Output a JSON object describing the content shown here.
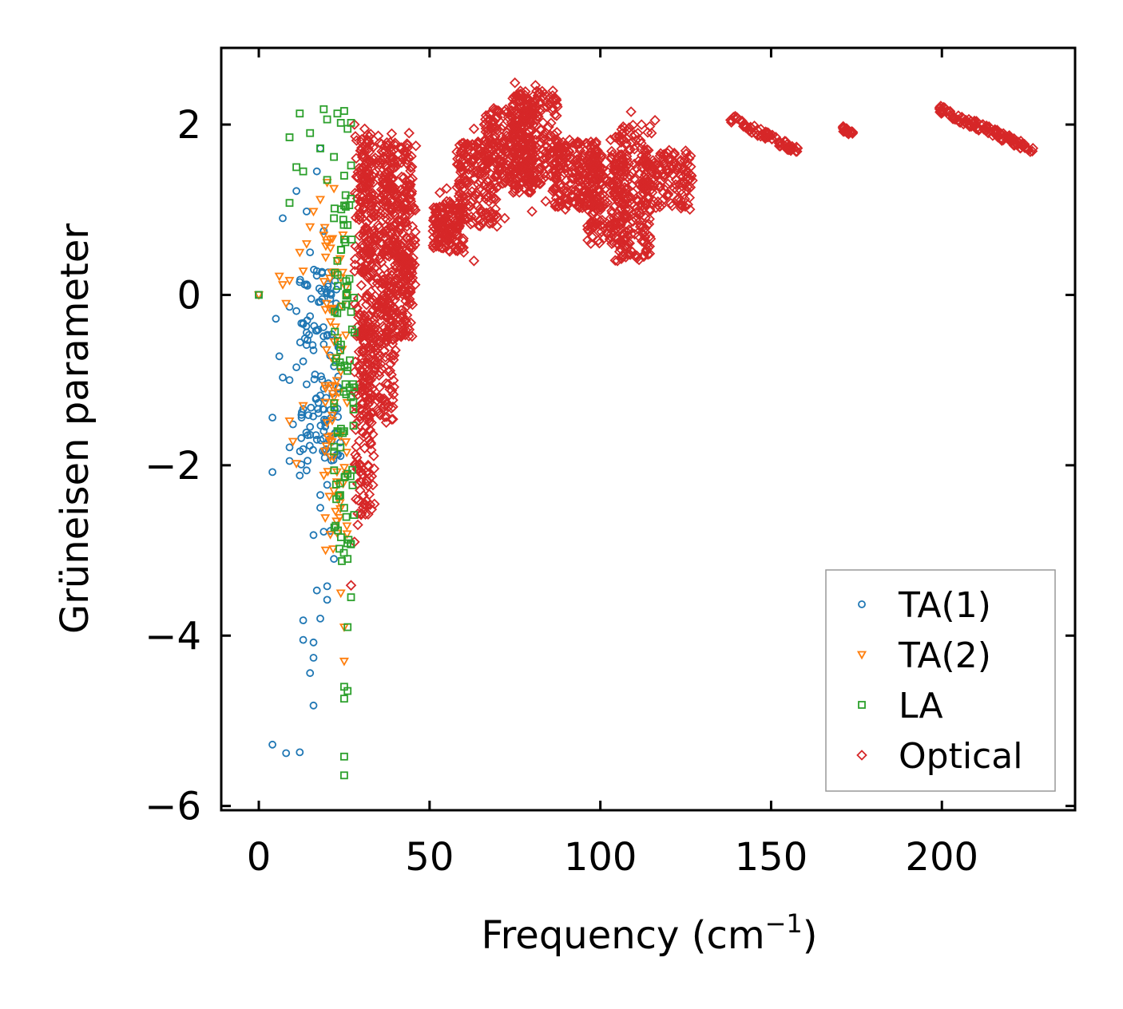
{
  "chart_data": {
    "type": "scatter",
    "xlabel": "Frequency (cm",
    "xlabel_sup": "−1",
    "xlabel_close": ")",
    "ylabel": "Grüneisen parameter",
    "xlim": [
      -11,
      239
    ],
    "ylim": [
      -6.05,
      2.9
    ],
    "xticks": [
      0,
      50,
      100,
      150,
      200
    ],
    "xtick_labels": [
      "0",
      "50",
      "100",
      "150",
      "200"
    ],
    "yticks": [
      -6,
      -4,
      -2,
      0,
      2
    ],
    "ytick_labels": [
      "−6",
      "−4",
      "−2",
      "0",
      "2"
    ],
    "legend_position": "lower-right",
    "series": [
      {
        "name": "TA(1)",
        "color": "#1f77b4",
        "marker": "circle",
        "points": [
          [
            0,
            0
          ],
          [
            4,
            -5.28
          ],
          [
            8,
            -5.38
          ],
          [
            12,
            -5.37
          ],
          [
            16,
            -4.82
          ],
          [
            15,
            -4.44
          ],
          [
            16,
            -4.26
          ],
          [
            16,
            -4.08
          ],
          [
            13,
            -4.05
          ],
          [
            13,
            -3.82
          ],
          [
            18,
            -3.8
          ],
          [
            17,
            -3.47
          ],
          [
            20,
            -3.42
          ],
          [
            20,
            -3.58
          ],
          [
            22,
            -3.1
          ],
          [
            21,
            -2.77
          ],
          [
            19,
            -2.78
          ],
          [
            16,
            -2.82
          ],
          [
            18,
            -2.5
          ],
          [
            18,
            -2.35
          ],
          [
            20,
            -2.23
          ],
          [
            14,
            -2.06
          ],
          [
            12,
            -2.12
          ],
          [
            9,
            -1.95
          ],
          [
            4,
            -2.08
          ],
          [
            9,
            -1.79
          ],
          [
            13,
            -1.81
          ],
          [
            17,
            -1.7
          ],
          [
            19,
            -1.6
          ],
          [
            15,
            -1.55
          ],
          [
            10,
            -1.52
          ],
          [
            4,
            -1.44
          ],
          [
            13,
            -1.34
          ],
          [
            21,
            -1.35
          ],
          [
            18,
            -1.18
          ],
          [
            14,
            -1.05
          ],
          [
            9,
            -1.0
          ],
          [
            7,
            -0.97
          ],
          [
            11,
            -0.85
          ],
          [
            13,
            -0.78
          ],
          [
            6,
            -0.72
          ],
          [
            16,
            -0.65
          ],
          [
            19,
            -0.58
          ],
          [
            20,
            -0.48
          ],
          [
            17,
            -0.42
          ],
          [
            13,
            -0.33
          ],
          [
            15,
            -0.25
          ],
          [
            11,
            -0.19
          ],
          [
            9,
            -0.14
          ],
          [
            5,
            -0.28
          ],
          [
            18,
            -0.08
          ],
          [
            21,
            0.02
          ],
          [
            12,
            0.15
          ],
          [
            17,
            0.28
          ],
          [
            15,
            0.5
          ],
          [
            19,
            0.75
          ],
          [
            7,
            0.9
          ],
          [
            14,
            0.98
          ],
          [
            11,
            1.22
          ],
          [
            17,
            1.45
          ],
          [
            18,
            1.72
          ]
        ],
        "clusters": [
          [
            12,
            24,
            -2.0,
            0.3,
            110
          ]
        ]
      },
      {
        "name": "TA(2)",
        "color": "#ff7f0e",
        "marker": "triangle-down",
        "points": [
          [
            0,
            0
          ],
          [
            6,
            0.22
          ],
          [
            7,
            0.12
          ],
          [
            8,
            -0.1
          ],
          [
            9,
            0.17
          ],
          [
            13,
            0.28
          ],
          [
            12,
            0.5
          ],
          [
            14,
            0.6
          ],
          [
            15,
            0.8
          ],
          [
            16,
            0.98
          ],
          [
            18,
            1.12
          ],
          [
            20,
            1.32
          ],
          [
            22,
            1.25
          ],
          [
            19,
            0.7
          ],
          [
            21,
            0.55
          ],
          [
            23,
            0.4
          ],
          [
            24,
            0.2
          ],
          [
            22,
            -0.2
          ],
          [
            23,
            -0.5
          ],
          [
            24,
            -0.9
          ],
          [
            22,
            -1.2
          ],
          [
            20,
            -1.5
          ],
          [
            21,
            -1.9
          ],
          [
            22,
            -2.3
          ],
          [
            23,
            -2.8
          ],
          [
            24,
            -3.5
          ],
          [
            25,
            -3.9
          ],
          [
            25,
            -4.3
          ],
          [
            9,
            -1.48
          ],
          [
            11,
            -1.98
          ],
          [
            10,
            -1.72
          ],
          [
            13,
            -1.3
          ]
        ],
        "clusters": [
          [
            19,
            26,
            -3.0,
            0.8,
            70
          ]
        ]
      },
      {
        "name": "LA",
        "color": "#2ca02c",
        "marker": "square",
        "points": [
          [
            0,
            0
          ],
          [
            9,
            1.85
          ],
          [
            11,
            1.5
          ],
          [
            13,
            1.45
          ],
          [
            15,
            1.9
          ],
          [
            12,
            2.13
          ],
          [
            18,
            1.72
          ],
          [
            19,
            2.18
          ],
          [
            20,
            2.06
          ],
          [
            23,
            2.13
          ],
          [
            24,
            2.02
          ],
          [
            25,
            2.16
          ],
          [
            26,
            1.95
          ],
          [
            27,
            2.02
          ],
          [
            22,
            1.62
          ],
          [
            27,
            1.52
          ],
          [
            25,
            1.4
          ],
          [
            20,
            1.35
          ],
          [
            25,
            1.05
          ],
          [
            22,
            0.9
          ],
          [
            26,
            0.82
          ],
          [
            25,
            0.65
          ],
          [
            23,
            0.4
          ],
          [
            26,
            0.1
          ],
          [
            27,
            -0.2
          ],
          [
            28,
            -0.44
          ],
          [
            26,
            -0.85
          ],
          [
            27,
            -1.2
          ],
          [
            25,
            -1.6
          ],
          [
            26,
            -2.1
          ],
          [
            25,
            -2.5
          ],
          [
            26,
            -3.1
          ],
          [
            27,
            -3.55
          ],
          [
            26,
            -3.9
          ],
          [
            25,
            -4.6
          ],
          [
            26,
            -4.65
          ],
          [
            25,
            -4.74
          ],
          [
            25,
            -5.42
          ],
          [
            25,
            -5.64
          ],
          [
            9,
            1.08
          ]
        ],
        "clusters": [
          [
            22,
            28,
            -3.2,
            1.2,
            80
          ]
        ]
      },
      {
        "name": "Optical",
        "color": "#d62728",
        "marker": "diamond",
        "points": [
          [
            75,
            2.49
          ],
          [
            81,
            2.46
          ],
          [
            86,
            2.34
          ],
          [
            79,
            2.3
          ],
          [
            69,
            2.17
          ],
          [
            66,
            2.0
          ],
          [
            63,
            1.95
          ],
          [
            62,
            1.75
          ],
          [
            60,
            1.65
          ],
          [
            58,
            1.68
          ],
          [
            55,
            1.25
          ],
          [
            53,
            1.2
          ],
          [
            51,
            0.75
          ],
          [
            54,
            0.55
          ],
          [
            60,
            0.5
          ],
          [
            63,
            0.4
          ],
          [
            72,
            0.9
          ],
          [
            80,
            0.98
          ],
          [
            84,
            1.1
          ],
          [
            87,
            1.05
          ],
          [
            94,
            1.15
          ],
          [
            99,
            1.0
          ],
          [
            103,
            0.9
          ],
          [
            105,
            0.4
          ],
          [
            108,
            0.7
          ],
          [
            110,
            1.05
          ],
          [
            114,
            1.38
          ],
          [
            118,
            1.48
          ],
          [
            122,
            1.55
          ],
          [
            126,
            1.6
          ],
          [
            109,
            2.15
          ],
          [
            116,
            2.05
          ],
          [
            111,
            1.9
          ],
          [
            103,
            1.82
          ],
          [
            97,
            1.73
          ],
          [
            91,
            1.82
          ],
          [
            85,
            1.7
          ],
          [
            44,
            1.9
          ],
          [
            46,
            1.75
          ],
          [
            42,
            1.6
          ],
          [
            35,
            1.58
          ],
          [
            30,
            1.48
          ],
          [
            32,
            1.22
          ],
          [
            30,
            1.7
          ],
          [
            31,
            1.95
          ],
          [
            28,
            2.0
          ],
          [
            27,
            -3.41
          ],
          [
            28,
            -2.9
          ],
          [
            29,
            -2.7
          ],
          [
            30,
            -2.2
          ],
          [
            31,
            -1.8
          ],
          [
            33,
            -1.5
          ],
          [
            35,
            -1.2
          ],
          [
            38,
            -0.9
          ],
          [
            40,
            -0.65
          ],
          [
            43,
            -0.3
          ],
          [
            44,
            -0.1
          ],
          [
            45,
            0.2
          ]
        ],
        "clusters": [
          [
            28,
            34,
            -2.6,
            1.9,
            260
          ],
          [
            30,
            40,
            -1.5,
            1.9,
            320
          ],
          [
            36,
            45,
            -0.5,
            1.8,
            240
          ],
          [
            40,
            46,
            0.0,
            1.2,
            70
          ],
          [
            51,
            60,
            0.5,
            1.1,
            140
          ],
          [
            58,
            70,
            0.8,
            1.8,
            180
          ],
          [
            66,
            80,
            1.2,
            2.2,
            220
          ],
          [
            74,
            88,
            1.3,
            2.4,
            220
          ],
          [
            86,
            100,
            1.0,
            1.8,
            200
          ],
          [
            96,
            108,
            0.6,
            1.7,
            180
          ],
          [
            104,
            115,
            0.4,
            2.0,
            200
          ],
          [
            112,
            127,
            1.0,
            1.7,
            140
          ]
        ],
        "bands": [
          [
            138,
            158,
            2.08,
            1.68,
            0.05,
            70
          ],
          [
            171,
            174,
            1.95,
            1.89,
            0.03,
            25
          ],
          [
            199,
            227,
            2.18,
            1.7,
            0.05,
            120
          ]
        ]
      }
    ]
  }
}
